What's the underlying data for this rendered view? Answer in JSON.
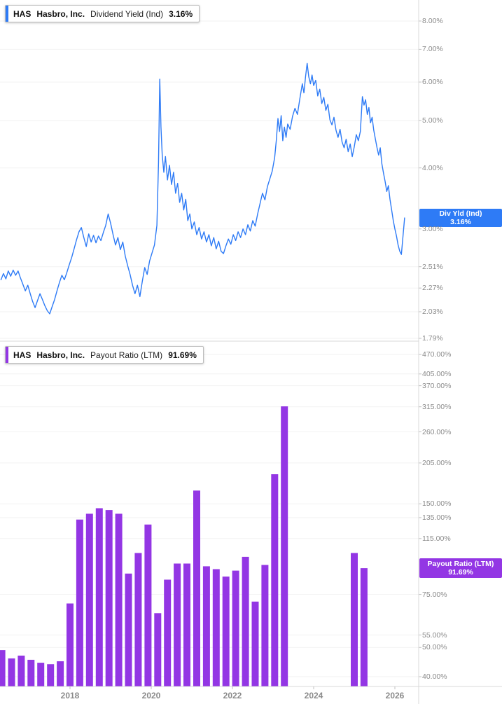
{
  "colors": {
    "background": "#ffffff",
    "line_blue": "#2e7bf6",
    "bar_purple": "#9336e4",
    "axis_text": "#8a8a8a",
    "grid": "#f2f2f2",
    "separator": "#d8d8d8",
    "tick_mark": "#c0c0c0"
  },
  "top_panel": {
    "legend": {
      "ticker": "HAS",
      "company": "Hasbro, Inc.",
      "metric": "Dividend Yield (Ind)",
      "value": "3.16%"
    },
    "badge": {
      "line1": "Div Yld (Ind)",
      "line2": "3.16%",
      "value": 3.16
    },
    "y_ticks": [
      {
        "label": "8.00%",
        "value": 8.0
      },
      {
        "label": "7.00%",
        "value": 7.0
      },
      {
        "label": "6.00%",
        "value": 6.0
      },
      {
        "label": "5.00%",
        "value": 5.0
      },
      {
        "label": "4.00%",
        "value": 4.0
      },
      {
        "label": "3.00%",
        "value": 3.0
      },
      {
        "label": "2.51%",
        "value": 2.51
      },
      {
        "label": "2.27%",
        "value": 2.27
      },
      {
        "label": "2.03%",
        "value": 2.03
      },
      {
        "label": "1.79%",
        "value": 1.79
      }
    ]
  },
  "bottom_panel": {
    "legend": {
      "ticker": "HAS",
      "company": "Hasbro, Inc.",
      "metric": "Payout Ratio (LTM)",
      "value": "91.69%"
    },
    "badge": {
      "line1": "Payout Ratio (LTM)",
      "line2": "91.69%",
      "value": 91.69
    },
    "y_ticks": [
      {
        "label": "470.00%",
        "value": 470
      },
      {
        "label": "405.00%",
        "value": 405
      },
      {
        "label": "370.00%",
        "value": 370
      },
      {
        "label": "315.00%",
        "value": 315
      },
      {
        "label": "260.00%",
        "value": 260
      },
      {
        "label": "205.00%",
        "value": 205
      },
      {
        "label": "150.00%",
        "value": 150
      },
      {
        "label": "135.00%",
        "value": 135
      },
      {
        "label": "115.00%",
        "value": 115
      },
      {
        "label": "75.00%",
        "value": 75
      },
      {
        "label": "55.00%",
        "value": 55
      },
      {
        "label": "50.00%",
        "value": 50
      },
      {
        "label": "40.00%",
        "value": 40
      }
    ]
  },
  "x_axis": {
    "years": [
      2018,
      2020,
      2022,
      2024,
      2026
    ]
  },
  "chart_data": [
    {
      "type": "line",
      "title": "HAS Hasbro, Inc. Dividend Yield (Ind)",
      "unit": "percent",
      "x_unit": "decimal_year",
      "y_scale": "log",
      "x_range": [
        2016.3,
        2026.6
      ],
      "visible_y_ticks": [
        8.0,
        7.0,
        6.0,
        5.0,
        4.0,
        3.0,
        2.51,
        2.27,
        2.03,
        1.79
      ],
      "last_value": 3.16,
      "points": [
        [
          2016.3,
          2.36
        ],
        [
          2016.36,
          2.43
        ],
        [
          2016.42,
          2.37
        ],
        [
          2016.48,
          2.46
        ],
        [
          2016.54,
          2.4
        ],
        [
          2016.6,
          2.47
        ],
        [
          2016.66,
          2.41
        ],
        [
          2016.72,
          2.46
        ],
        [
          2016.78,
          2.38
        ],
        [
          2016.84,
          2.31
        ],
        [
          2016.9,
          2.24
        ],
        [
          2016.96,
          2.3
        ],
        [
          2017.02,
          2.21
        ],
        [
          2017.08,
          2.13
        ],
        [
          2017.14,
          2.07
        ],
        [
          2017.2,
          2.14
        ],
        [
          2017.26,
          2.21
        ],
        [
          2017.32,
          2.15
        ],
        [
          2017.38,
          2.09
        ],
        [
          2017.44,
          2.04
        ],
        [
          2017.5,
          2.01
        ],
        [
          2017.56,
          2.08
        ],
        [
          2017.62,
          2.15
        ],
        [
          2017.68,
          2.24
        ],
        [
          2017.74,
          2.33
        ],
        [
          2017.8,
          2.41
        ],
        [
          2017.86,
          2.36
        ],
        [
          2017.92,
          2.44
        ],
        [
          2017.98,
          2.53
        ],
        [
          2018.04,
          2.62
        ],
        [
          2018.1,
          2.73
        ],
        [
          2018.16,
          2.85
        ],
        [
          2018.22,
          2.96
        ],
        [
          2018.28,
          3.02
        ],
        [
          2018.34,
          2.88
        ],
        [
          2018.4,
          2.76
        ],
        [
          2018.46,
          2.93
        ],
        [
          2018.52,
          2.82
        ],
        [
          2018.58,
          2.91
        ],
        [
          2018.64,
          2.81
        ],
        [
          2018.7,
          2.9
        ],
        [
          2018.76,
          2.84
        ],
        [
          2018.82,
          2.95
        ],
        [
          2018.88,
          3.05
        ],
        [
          2018.94,
          3.22
        ],
        [
          2019.0,
          3.08
        ],
        [
          2019.06,
          2.92
        ],
        [
          2019.12,
          2.78
        ],
        [
          2019.18,
          2.88
        ],
        [
          2019.24,
          2.72
        ],
        [
          2019.3,
          2.82
        ],
        [
          2019.36,
          2.64
        ],
        [
          2019.42,
          2.52
        ],
        [
          2019.48,
          2.42
        ],
        [
          2019.54,
          2.3
        ],
        [
          2019.6,
          2.21
        ],
        [
          2019.66,
          2.3
        ],
        [
          2019.72,
          2.18
        ],
        [
          2019.78,
          2.34
        ],
        [
          2019.84,
          2.5
        ],
        [
          2019.9,
          2.42
        ],
        [
          2019.96,
          2.58
        ],
        [
          2020.02,
          2.68
        ],
        [
          2020.08,
          2.78
        ],
        [
          2020.14,
          3.05
        ],
        [
          2020.18,
          4.1
        ],
        [
          2020.21,
          6.08
        ],
        [
          2020.24,
          4.85
        ],
        [
          2020.27,
          4.25
        ],
        [
          2020.31,
          3.92
        ],
        [
          2020.35,
          4.22
        ],
        [
          2020.4,
          3.78
        ],
        [
          2020.45,
          4.05
        ],
        [
          2020.5,
          3.7
        ],
        [
          2020.55,
          3.92
        ],
        [
          2020.6,
          3.55
        ],
        [
          2020.65,
          3.72
        ],
        [
          2020.7,
          3.4
        ],
        [
          2020.75,
          3.55
        ],
        [
          2020.8,
          3.28
        ],
        [
          2020.85,
          3.45
        ],
        [
          2020.9,
          3.12
        ],
        [
          2020.95,
          3.22
        ],
        [
          2021.0,
          3.0
        ],
        [
          2021.06,
          3.1
        ],
        [
          2021.12,
          2.92
        ],
        [
          2021.18,
          3.02
        ],
        [
          2021.24,
          2.86
        ],
        [
          2021.3,
          2.96
        ],
        [
          2021.36,
          2.82
        ],
        [
          2021.42,
          2.92
        ],
        [
          2021.48,
          2.77
        ],
        [
          2021.54,
          2.88
        ],
        [
          2021.6,
          2.73
        ],
        [
          2021.66,
          2.83
        ],
        [
          2021.72,
          2.7
        ],
        [
          2021.78,
          2.67
        ],
        [
          2021.84,
          2.77
        ],
        [
          2021.9,
          2.86
        ],
        [
          2021.96,
          2.79
        ],
        [
          2022.02,
          2.92
        ],
        [
          2022.08,
          2.84
        ],
        [
          2022.14,
          2.96
        ],
        [
          2022.2,
          2.88
        ],
        [
          2022.26,
          3.0
        ],
        [
          2022.32,
          2.92
        ],
        [
          2022.38,
          3.06
        ],
        [
          2022.44,
          2.97
        ],
        [
          2022.5,
          3.12
        ],
        [
          2022.56,
          3.04
        ],
        [
          2022.62,
          3.22
        ],
        [
          2022.68,
          3.38
        ],
        [
          2022.74,
          3.55
        ],
        [
          2022.8,
          3.44
        ],
        [
          2022.86,
          3.66
        ],
        [
          2022.92,
          3.8
        ],
        [
          2022.98,
          3.94
        ],
        [
          2023.04,
          4.2
        ],
        [
          2023.08,
          4.55
        ],
        [
          2023.12,
          5.05
        ],
        [
          2023.16,
          4.75
        ],
        [
          2023.2,
          5.12
        ],
        [
          2023.24,
          4.55
        ],
        [
          2023.28,
          4.85
        ],
        [
          2023.32,
          4.62
        ],
        [
          2023.36,
          4.92
        ],
        [
          2023.42,
          4.8
        ],
        [
          2023.48,
          5.1
        ],
        [
          2023.54,
          5.3
        ],
        [
          2023.6,
          5.15
        ],
        [
          2023.66,
          5.55
        ],
        [
          2023.72,
          5.95
        ],
        [
          2023.76,
          5.7
        ],
        [
          2023.8,
          6.15
        ],
        [
          2023.84,
          6.55
        ],
        [
          2023.88,
          6.15
        ],
        [
          2023.92,
          5.95
        ],
        [
          2023.96,
          6.2
        ],
        [
          2024.0,
          5.9
        ],
        [
          2024.05,
          6.05
        ],
        [
          2024.1,
          5.62
        ],
        [
          2024.15,
          5.8
        ],
        [
          2024.2,
          5.42
        ],
        [
          2024.25,
          5.58
        ],
        [
          2024.3,
          5.25
        ],
        [
          2024.35,
          5.4
        ],
        [
          2024.4,
          5.02
        ],
        [
          2024.45,
          4.9
        ],
        [
          2024.5,
          5.08
        ],
        [
          2024.55,
          4.78
        ],
        [
          2024.6,
          4.62
        ],
        [
          2024.65,
          4.8
        ],
        [
          2024.7,
          4.52
        ],
        [
          2024.75,
          4.4
        ],
        [
          2024.8,
          4.58
        ],
        [
          2024.85,
          4.32
        ],
        [
          2024.9,
          4.48
        ],
        [
          2024.95,
          4.22
        ],
        [
          2025.0,
          4.42
        ],
        [
          2025.05,
          4.68
        ],
        [
          2025.1,
          4.55
        ],
        [
          2025.15,
          4.75
        ],
        [
          2025.2,
          5.6
        ],
        [
          2025.24,
          5.38
        ],
        [
          2025.28,
          5.52
        ],
        [
          2025.32,
          5.15
        ],
        [
          2025.36,
          5.32
        ],
        [
          2025.4,
          4.95
        ],
        [
          2025.44,
          5.08
        ],
        [
          2025.48,
          4.78
        ],
        [
          2025.52,
          4.58
        ],
        [
          2025.56,
          4.4
        ],
        [
          2025.6,
          4.25
        ],
        [
          2025.64,
          4.4
        ],
        [
          2025.68,
          4.08
        ],
        [
          2025.72,
          3.9
        ],
        [
          2025.76,
          3.75
        ],
        [
          2025.8,
          3.58
        ],
        [
          2025.84,
          3.68
        ],
        [
          2025.88,
          3.45
        ],
        [
          2025.92,
          3.28
        ],
        [
          2025.96,
          3.12
        ],
        [
          2026.0,
          3.0
        ],
        [
          2026.04,
          2.9
        ],
        [
          2026.08,
          2.78
        ],
        [
          2026.12,
          2.7
        ],
        [
          2026.16,
          2.66
        ],
        [
          2026.2,
          2.9
        ],
        [
          2026.24,
          3.16
        ]
      ]
    },
    {
      "type": "bar",
      "title": "HAS Hasbro, Inc. Payout Ratio (LTM)",
      "unit": "percent",
      "x_unit": "decimal_year",
      "y_scale": "log",
      "last_value": 91.69,
      "x": [
        2016.32,
        2016.56,
        2016.8,
        2017.04,
        2017.28,
        2017.52,
        2017.76,
        2018.0,
        2018.24,
        2018.48,
        2018.72,
        2018.96,
        2019.2,
        2019.44,
        2019.68,
        2019.92,
        2020.16,
        2020.4,
        2020.64,
        2020.88,
        2021.12,
        2021.36,
        2021.6,
        2021.84,
        2022.08,
        2022.32,
        2022.56,
        2022.8,
        2023.04,
        2023.28,
        2025.0,
        2025.24
      ],
      "values": [
        49,
        46,
        47,
        45.5,
        44.5,
        44,
        45,
        70,
        133,
        139,
        145,
        143,
        139,
        88,
        103,
        128,
        65,
        84,
        95,
        95,
        166,
        93,
        91,
        86,
        90,
        100,
        71,
        94,
        188,
        316,
        103,
        91.69
      ]
    }
  ]
}
